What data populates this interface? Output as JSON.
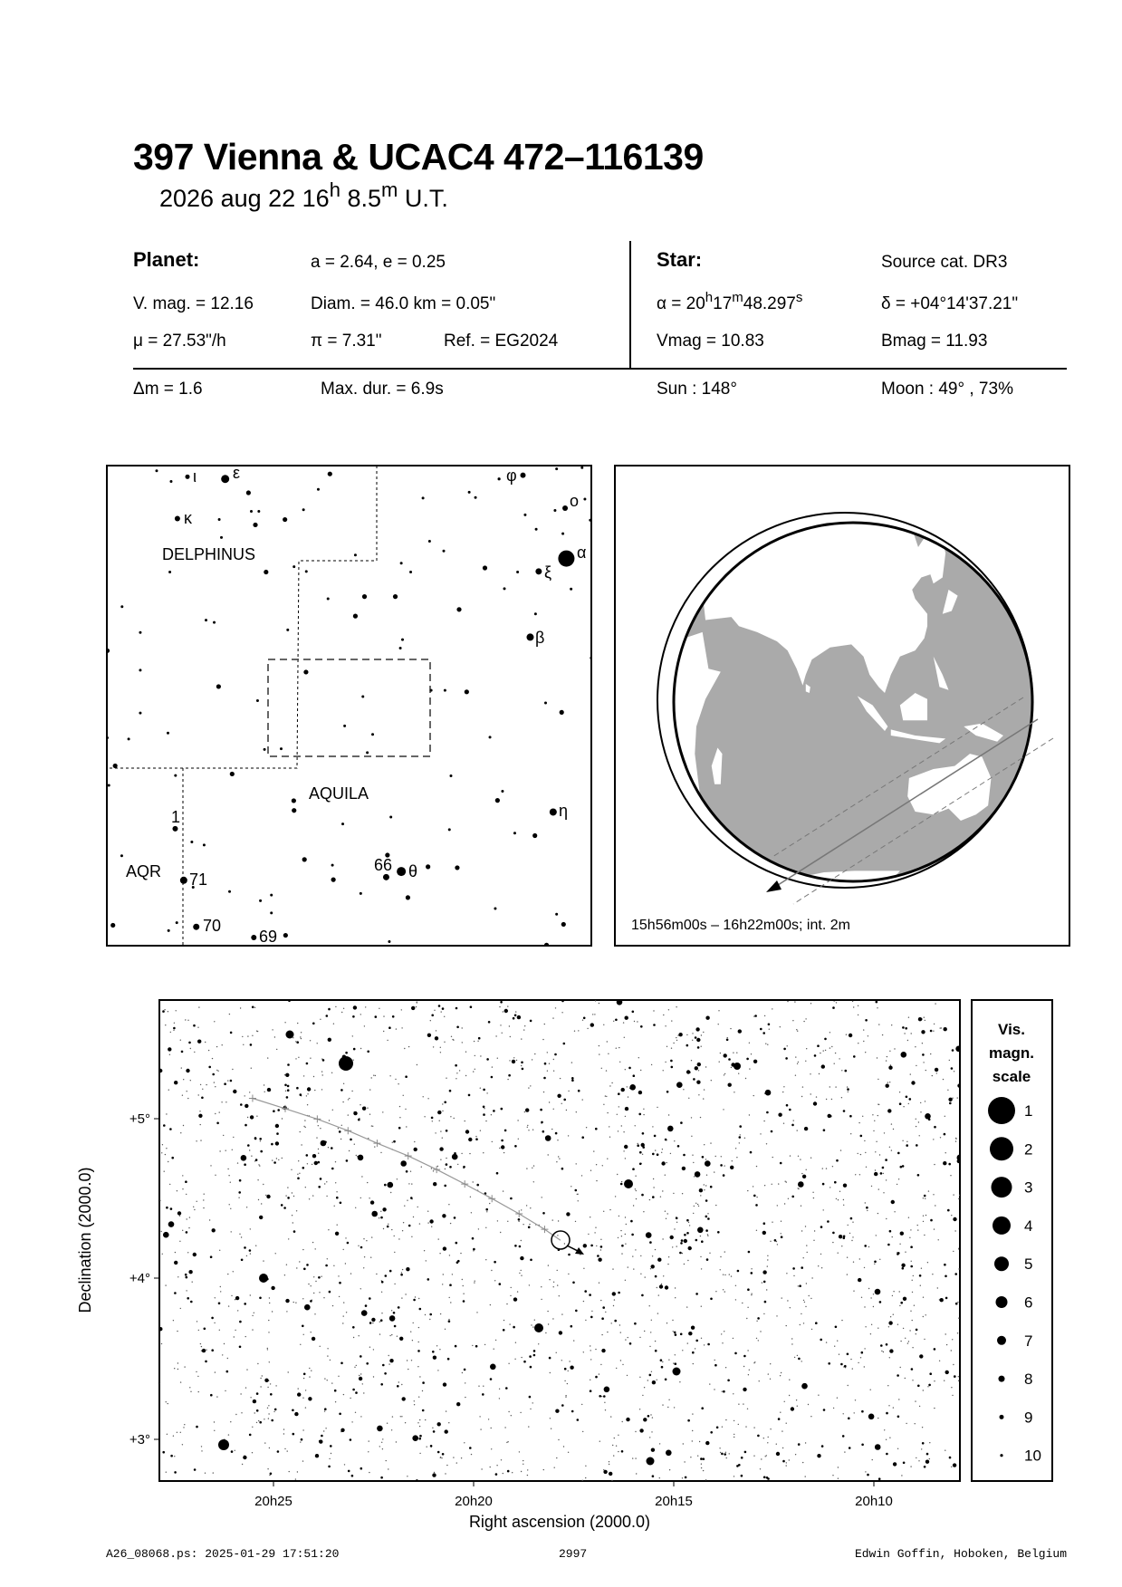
{
  "header": {
    "title": "397 Vienna  &  UCAC4 472–116139",
    "date": "2026 aug 22  16",
    "time_h_sup": "h",
    "time_min": " 8.5",
    "time_m_sup": "m",
    "time_suffix": " U.T."
  },
  "planet": {
    "heading": "Planet:",
    "orbit": "a = 2.64, e = 0.25",
    "vmag": "V. mag. = 12.16",
    "diam": "Diam. = 46.0 km = 0.05\"",
    "motion": "μ =  27.53\"/h",
    "parallax": "π =  7.31\"",
    "ref": "Ref. = EG2024"
  },
  "star": {
    "heading": "Star:",
    "source": "Source cat.  DR3",
    "ra_prefix": "α = 20",
    "ra_h": "h",
    "ra_min": "17",
    "ra_m": "m",
    "ra_sec": "48.297",
    "ra_s": "s",
    "dec": "δ = +04°14'37.21\"",
    "vmag": "Vmag = 10.83",
    "bmag": "Bmag = 11.93"
  },
  "event": {
    "delta_m": "Δm = 1.6",
    "max_dur": "Max. dur. = 6.9s",
    "sun": "Sun : 148°",
    "moon": "Moon :  49° , 73%"
  },
  "overview_map": {
    "constellations": [
      "DELPHINUS",
      "AQUILA",
      "AQR"
    ],
    "star_labels": {
      "iota": "ι",
      "epsilon": "ε",
      "kappa": "κ",
      "phi": "φ",
      "omicron": "ο",
      "alpha": "α",
      "xi": "ξ",
      "beta": "β",
      "eta": "η",
      "theta": "θ",
      "n66": "66",
      "n1": "1",
      "n71": "71",
      "n70": "70",
      "n69": "69"
    }
  },
  "globe": {
    "caption": "15h56m00s – 16h22m00s; int.  2m",
    "ocean_color": "#aaaaaa",
    "land_color": "#ffffff"
  },
  "finder_chart": {
    "xlabel": "Right ascension (2000.0)",
    "ylabel": "Declination (2000.0)",
    "x_ticks": [
      "20h25",
      "20h20",
      "20h15",
      "20h10"
    ],
    "y_ticks": [
      "+5°",
      "+4°",
      "+3°"
    ],
    "path_color": "#999999"
  },
  "legend": {
    "title_lines": [
      "Vis.",
      "magn.",
      "scale"
    ],
    "magnitudes": [
      "1",
      "2",
      "3",
      "4",
      "5",
      "6",
      "7",
      "8",
      "9",
      "10"
    ]
  },
  "footer": {
    "file": "A26_08068.ps: 2025-01-29 17:51:20",
    "number": "2997",
    "author": "Edwin Goffin, Hoboken, Belgium"
  }
}
